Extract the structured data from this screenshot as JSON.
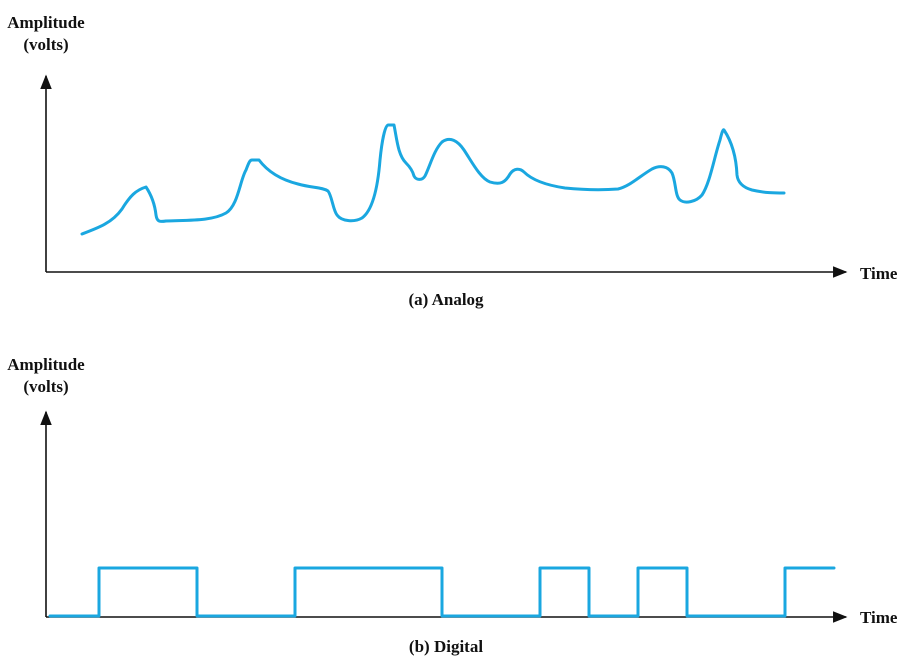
{
  "analog": {
    "ylabel_line1": "Amplitude",
    "ylabel_line2": "(volts)",
    "xlabel": "Time",
    "caption": "(a) Analog"
  },
  "digital": {
    "ylabel_line1": "Amplitude",
    "ylabel_line2": "(volts)",
    "xlabel": "Time",
    "caption": "(b) Digital",
    "levels": [
      0,
      1,
      1,
      0,
      0,
      1,
      1,
      1,
      0,
      0,
      1,
      0,
      1,
      0,
      0,
      1
    ]
  },
  "colors": {
    "signal": "#1aa7e0",
    "axis": "#111111"
  }
}
